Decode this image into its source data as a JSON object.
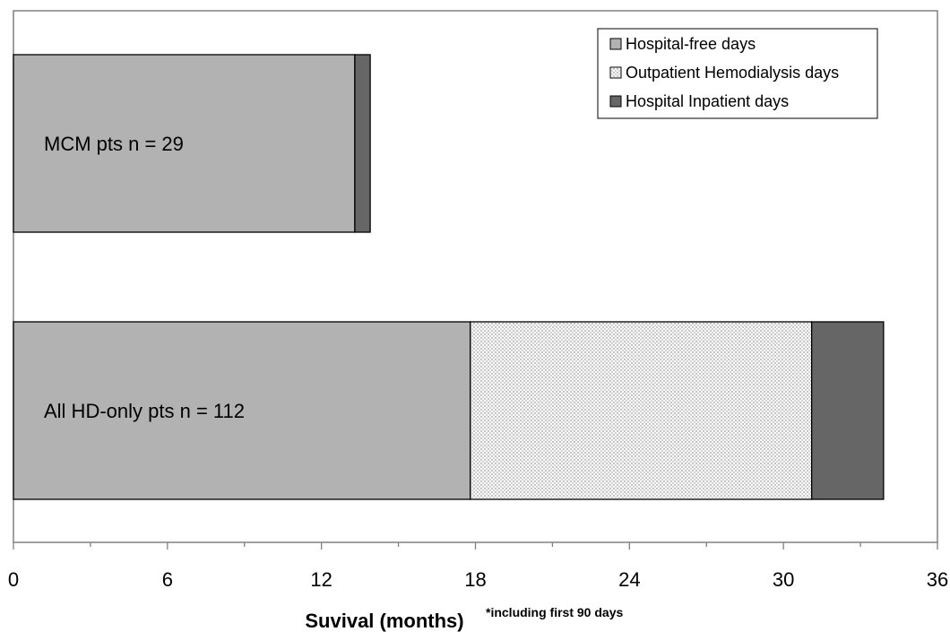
{
  "chart_data": {
    "type": "bar",
    "orientation": "horizontal",
    "stacked": true,
    "categories": [
      "MCM pts n = 29",
      "All HD-only pts n = 112"
    ],
    "series": [
      {
        "name": "Hospital-free days",
        "values": [
          13.3,
          17.8
        ],
        "color": "#b2b2b2",
        "pattern": "solid"
      },
      {
        "name": "Outpatient Hemodialysis days",
        "values": [
          0,
          13.3
        ],
        "color": "#f4f4f4",
        "pattern": "dotted"
      },
      {
        "name": "Hospital Inpatient days",
        "values": [
          0.6,
          2.8
        ],
        "color": "#666666",
        "pattern": "solid"
      }
    ],
    "xlabel": "Suvival (months)",
    "xlabel_note": "*including first 90 days",
    "xlim": [
      0,
      36
    ],
    "xticks": [
      "0",
      "6",
      "12",
      "18",
      "24",
      "30",
      "36"
    ],
    "minor_tick_step": 3,
    "grid": false,
    "legend_position": "top-right"
  }
}
